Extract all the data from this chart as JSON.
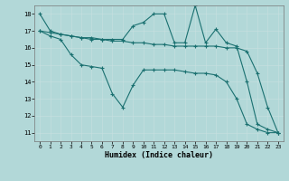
{
  "background_color": "#b2d8d8",
  "line_color": "#1a7070",
  "xlabel": "Humidex (Indice chaleur)",
  "ylim": [
    10.5,
    18.5
  ],
  "xlim": [
    -0.5,
    23.5
  ],
  "yticks": [
    11,
    12,
    13,
    14,
    15,
    16,
    17,
    18
  ],
  "xticks": [
    0,
    1,
    2,
    3,
    4,
    5,
    6,
    7,
    8,
    9,
    10,
    11,
    12,
    13,
    14,
    15,
    16,
    17,
    18,
    19,
    20,
    21,
    22,
    23
  ],
  "line1": [
    18,
    17,
    16.8,
    16.7,
    16.6,
    16.6,
    16.5,
    16.5,
    16.5,
    17.3,
    17.5,
    18.0,
    18.0,
    16.3,
    16.3,
    18.5,
    16.3,
    17.1,
    16.3,
    16.1,
    14.0,
    11.5,
    11.2,
    11.0
  ],
  "line2": [
    17.0,
    16.9,
    16.8,
    16.7,
    16.6,
    16.5,
    16.5,
    16.4,
    16.4,
    16.3,
    16.3,
    16.2,
    16.2,
    16.1,
    16.1,
    16.1,
    16.1,
    16.1,
    16.0,
    16.0,
    15.8,
    14.5,
    12.5,
    11.0
  ],
  "line3": [
    17.0,
    16.7,
    16.5,
    15.6,
    15.0,
    14.9,
    14.8,
    13.3,
    12.5,
    13.8,
    14.7,
    14.7,
    14.7,
    14.7,
    14.6,
    14.5,
    14.5,
    14.4,
    14.0,
    13.0,
    11.5,
    11.2,
    11.0,
    11.0
  ]
}
